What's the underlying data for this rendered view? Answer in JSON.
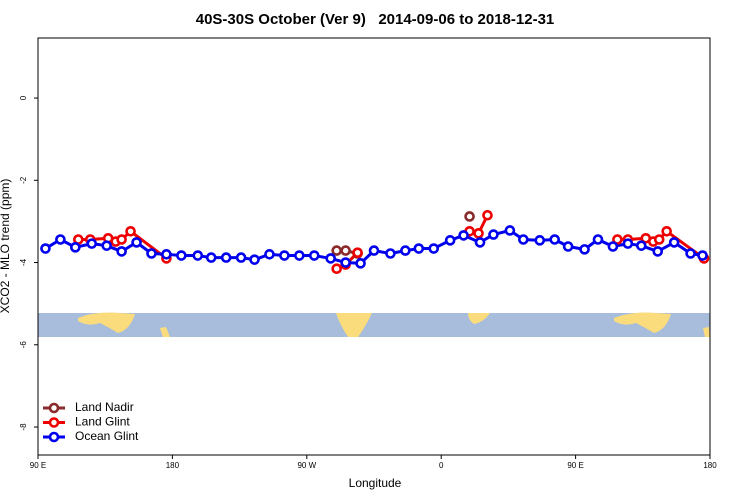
{
  "chart_data": {
    "type": "line",
    "title": "40S-30S October (Ver 9)   2014-09-06 to 2018-12-31",
    "xlabel": "Longitude",
    "ylabel": "XCO2 - MLO trend (ppm)",
    "xlim": [
      90,
      540
    ],
    "ylim": [
      -8.68,
      1.46
    ],
    "xticks": [
      {
        "value": 90,
        "label": "90 E"
      },
      180,
      {
        "value": 270,
        "label": "90 W"
      },
      {
        "value": 360,
        "label": "0"
      },
      {
        "value": 450,
        "label": "90 E"
      },
      {
        "value": 540,
        "label": "180"
      }
    ],
    "yticks": [
      0,
      -2,
      -4,
      -6,
      -8
    ],
    "legend": "bottom-left",
    "series": [
      {
        "name": "Land Nadir",
        "color": "#8b2a2a",
        "x": [
          290,
          296,
          304,
          null,
          379
        ],
        "values": [
          -3.71,
          -3.71,
          -3.78,
          null,
          -2.88
        ]
      },
      {
        "name": "Land Glint",
        "color": "#ee0000",
        "x": [
          117,
          125,
          137,
          142,
          146,
          152,
          176,
          null,
          290,
          296,
          304,
          null,
          379,
          385,
          391,
          null,
          478,
          485,
          497,
          502,
          506,
          511,
          536
        ],
        "values": [
          -3.44,
          -3.44,
          -3.41,
          -3.49,
          -3.44,
          -3.24,
          -3.9,
          null,
          -4.15,
          -4.05,
          -3.76,
          null,
          -3.24,
          -3.29,
          -2.85,
          null,
          -3.44,
          -3.44,
          -3.41,
          -3.49,
          -3.44,
          -3.24,
          -3.9
        ]
      },
      {
        "name": "Ocean Glint",
        "color": "#0000ee",
        "x": [
          95,
          105,
          115,
          126,
          136,
          146,
          156,
          166,
          176,
          186,
          197,
          206,
          216,
          226,
          235,
          245,
          255,
          265,
          275,
          286,
          296,
          306,
          315,
          326,
          336,
          345,
          355,
          366,
          375,
          386,
          395,
          406,
          415,
          426,
          436,
          445,
          456,
          465,
          475,
          485,
          494,
          505,
          516,
          527,
          535
        ],
        "values": [
          -3.66,
          -3.44,
          -3.63,
          -3.54,
          -3.59,
          -3.73,
          -3.51,
          -3.78,
          -3.8,
          -3.83,
          -3.83,
          -3.88,
          -3.88,
          -3.88,
          -3.93,
          -3.8,
          -3.83,
          -3.83,
          -3.83,
          -3.9,
          -4.0,
          -4.02,
          -3.71,
          -3.78,
          -3.71,
          -3.66,
          -3.66,
          -3.46,
          -3.34,
          -3.51,
          -3.32,
          -3.22,
          -3.44,
          -3.46,
          -3.44,
          -3.61,
          -3.68,
          -3.44,
          -3.61,
          -3.54,
          -3.59,
          -3.73,
          -3.51,
          -3.78,
          -3.83
        ]
      }
    ]
  }
}
